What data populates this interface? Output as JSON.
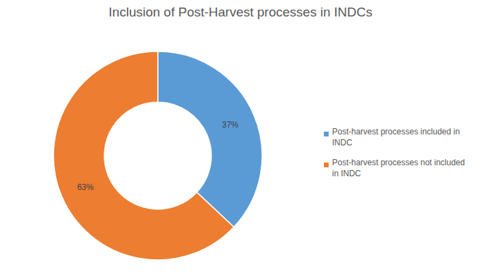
{
  "chart_data": {
    "type": "donut",
    "title": "Inclusion of Post-Harvest processes in INDCs",
    "categories": [
      "Post-harvest processes included in INDC",
      "Post-harvest processes not included in INDC"
    ],
    "values": [
      37,
      63
    ],
    "value_labels": [
      "37%",
      "63%"
    ],
    "colors": [
      "#5B9BD5",
      "#ED7D31"
    ],
    "data_labels": true,
    "legend": "right"
  }
}
